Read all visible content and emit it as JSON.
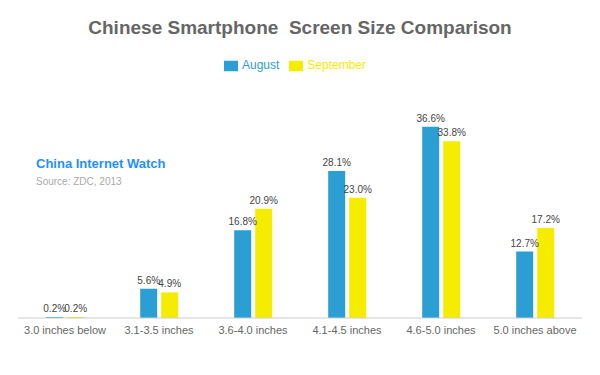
{
  "chart_data": {
    "type": "bar",
    "title": "Chinese Smartphone  Screen Size Comparison",
    "categories": [
      "3.0 inches below",
      "3.1-3.5 inches",
      "3.6-4.0 inches",
      "4.1-4.5 inches",
      "4.6-5.0 inches",
      "5.0 inches above"
    ],
    "series": [
      {
        "name": "August",
        "color": "#2B9ED4",
        "values": [
          0.2,
          5.6,
          16.8,
          28.1,
          36.6,
          12.7
        ],
        "value_labels": [
          "0.2%",
          "5.6%",
          "16.8%",
          "28.1%",
          "36.6%",
          "12.7%"
        ]
      },
      {
        "name": "September",
        "color": "#F5EC00",
        "values": [
          0.2,
          4.9,
          20.9,
          23.0,
          33.8,
          17.2
        ],
        "value_labels": [
          "0.2%",
          "4.9%",
          "20.9%",
          "23.0%",
          "33.8%",
          "17.2%"
        ]
      }
    ],
    "ylim": [
      0,
      44
    ],
    "grid": false,
    "legend": "top",
    "data_labels": true,
    "tick_labels": "x",
    "annotations": [
      {
        "text": "China Internet Watch",
        "color": "#1E90FF"
      },
      {
        "text": "Source: ZDC, 2013",
        "color": "#aaaaaa"
      }
    ]
  }
}
